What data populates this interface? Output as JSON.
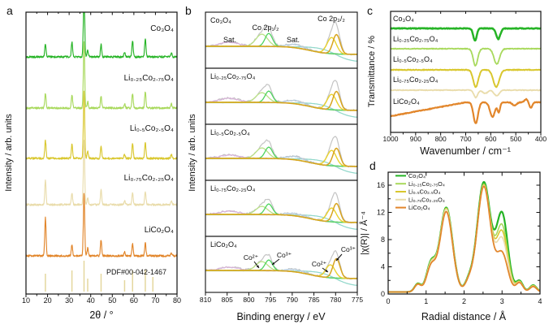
{
  "figure": {
    "panel_labels": [
      "a",
      "b",
      "c",
      "d"
    ],
    "background": "#ffffff"
  },
  "chart_data": [
    {
      "id": "xrd_patterns",
      "type": "line",
      "panel": "a",
      "xlabel": "2θ / °",
      "ylabel": "Intensity / arb. units",
      "xlim": [
        10,
        80
      ],
      "x_ticks": [
        10,
        20,
        30,
        40,
        50,
        60,
        70,
        80
      ],
      "peak_positions_2theta": [
        19.0,
        31.3,
        36.9,
        38.6,
        44.8,
        55.7,
        59.4,
        65.3,
        77.4
      ],
      "series": [
        {
          "name": "Co₃O₄",
          "color": "#26b426",
          "peak_heights": [
            16,
            18,
            85,
            8,
            15,
            6,
            20,
            22,
            5
          ]
        },
        {
          "name": "Li₀.₂₅Co₂.₇₅O₄",
          "color": "#a8d95c",
          "peak_heights": [
            18,
            16,
            82,
            8,
            14,
            5,
            18,
            20,
            5
          ]
        },
        {
          "name": "Li₀.₅Co₂.₅O₄",
          "color": "#d9c72e",
          "peak_heights": [
            22,
            17,
            82,
            9,
            15,
            5,
            18,
            20,
            5
          ]
        },
        {
          "name": "Li₀.₇₅Co₂.₂₅O₄",
          "color": "#e9dcab",
          "peak_heights": [
            30,
            14,
            80,
            9,
            18,
            5,
            15,
            16,
            4
          ]
        },
        {
          "name": "LiCo₂O₄",
          "color": "#e2862b",
          "peak_heights": [
            47,
            14,
            78,
            10,
            20,
            5,
            15,
            16,
            4
          ]
        }
      ],
      "reference": {
        "label": "PDF#00-042-1467",
        "color": "#e4d79e",
        "sticks": [
          [
            19.0,
            22
          ],
          [
            31.3,
            26
          ],
          [
            36.9,
            38
          ],
          [
            38.6,
            16
          ],
          [
            44.8,
            22
          ],
          [
            55.7,
            14
          ],
          [
            59.4,
            26
          ],
          [
            65.3,
            27
          ],
          [
            68.8,
            18
          ]
        ]
      }
    },
    {
      "id": "xps_co2p",
      "type": "line",
      "panel": "b",
      "xlabel": "Binding energy / eV",
      "ylabel": "Intensity / arb. units",
      "xlim": [
        810,
        775
      ],
      "x_ticks": [
        810,
        805,
        800,
        795,
        790,
        785,
        780,
        775
      ],
      "region_labels": [
        "Sat.",
        "Co 2p₁/₂",
        "Sat.",
        "Co 2p₃/₂"
      ],
      "ion_labels": [
        "Co²⁺",
        "Co³⁺",
        "Co²⁺",
        "Co³⁺"
      ],
      "component_colors": {
        "raw": "#c4c4c4",
        "co2_a": "#b9e186",
        "co2_b": "#4fd45f",
        "co3_a": "#e9d22e",
        "co3_b": "#d8a41e",
        "sat_left": "#d9b3d9",
        "sat_right": "#b7cddd",
        "background": "#93d8cb"
      },
      "component_sigmas": {
        "co2_a": 1.35,
        "co2_b": 0.85,
        "co3_a": 1.05,
        "co3_b": 0.82,
        "sat_left": 2.2,
        "sat_right": 2.0
      },
      "subplots": [
        {
          "label": "Co₃O₄",
          "co2_a": [
            797.0,
            15
          ],
          "co2_b": [
            795.4,
            16
          ],
          "co3_a": [
            780.9,
            20
          ],
          "co3_b": [
            779.8,
            24
          ],
          "sat_left": [
            804.5,
            5
          ],
          "sat_right": [
            789.3,
            4
          ]
        },
        {
          "label": "Li₀.₂₅Co₂.₇₅O₄",
          "co2_a": [
            797.0,
            12
          ],
          "co2_b": [
            795.4,
            14
          ],
          "co3_a": [
            780.9,
            19
          ],
          "co3_b": [
            779.8,
            23
          ],
          "sat_left": [
            804.5,
            5
          ],
          "sat_right": [
            789.3,
            4
          ]
        },
        {
          "label": "Li₀.₅Co₂.₅O₄",
          "co2_a": [
            797.0,
            13
          ],
          "co2_b": [
            795.4,
            14
          ],
          "co3_a": [
            780.9,
            19
          ],
          "co3_b": [
            779.8,
            22
          ],
          "sat_left": [
            804.5,
            4
          ],
          "sat_right": [
            789.3,
            4
          ]
        },
        {
          "label": "Li₀.₇₅Co₂.₂₅O₄",
          "co2_a": [
            797.0,
            10
          ],
          "co2_b": [
            795.4,
            13
          ],
          "co3_a": [
            780.9,
            17
          ],
          "co3_b": [
            779.8,
            23
          ],
          "sat_left": [
            804.5,
            4
          ],
          "sat_right": [
            789.3,
            3
          ]
        },
        {
          "label": "LiCo₂O₄",
          "co2_a": [
            797.0,
            11
          ],
          "co2_b": [
            795.4,
            13
          ],
          "co3_a": [
            781.2,
            16
          ],
          "co3_b": [
            779.8,
            24
          ],
          "sat_left": [
            804.5,
            4
          ],
          "sat_right": [
            789.3,
            3
          ]
        }
      ]
    },
    {
      "id": "ftir_spectra",
      "type": "line",
      "panel": "c",
      "xlabel": "Wavenumber / cm⁻¹",
      "ylabel": "Transmittance / %",
      "xlim": [
        1000,
        400
      ],
      "x_ticks": [
        1000,
        900,
        800,
        700,
        600,
        500,
        400
      ],
      "series": [
        {
          "name": "Co₃O₄",
          "color": "#26b426",
          "width": 2.5,
          "dips": [
            [
              663,
              15,
              7
            ],
            [
              570,
              13,
              8
            ]
          ]
        },
        {
          "name": "Li₀.₂₅Co₂.₇₅O₄",
          "color": "#a8d95c",
          "width": 1.8,
          "dips": [
            [
              661,
              21,
              9
            ],
            [
              576,
              19,
              11
            ]
          ]
        },
        {
          "name": "Li₀.₅Co₂.₅O₄",
          "color": "#d9c72e",
          "width": 2.0,
          "dips": [
            [
              660,
              21,
              10
            ],
            [
              578,
              21,
              12
            ]
          ]
        },
        {
          "name": "Li₀.₇₅Co₂.₂₅O₄",
          "color": "#e9dcab",
          "width": 1.8,
          "dips": [
            [
              660,
              9,
              8
            ],
            [
              622,
              4,
              10
            ],
            [
              576,
              7,
              10
            ]
          ]
        },
        {
          "name": "LiCo₂O₄",
          "color": "#e2862b",
          "width": 2.2,
          "dips": [
            [
              660,
              26,
              9
            ],
            [
              593,
              18,
              10
            ],
            [
              568,
              12,
              5
            ],
            [
              505,
              4,
              8
            ],
            [
              458,
              -4,
              7
            ],
            [
              440,
              7,
              6
            ]
          ]
        }
      ]
    },
    {
      "id": "exafs",
      "type": "line",
      "panel": "d",
      "xlabel": "Radial distance / Å",
      "ylabel": "|χ(R)| / Å⁻⁴",
      "xlim": [
        0,
        4
      ],
      "ylim": [
        0,
        17.9
      ],
      "x_ticks": [
        0,
        1,
        2,
        3,
        4
      ],
      "y_ticks": [
        0,
        4,
        8,
        12,
        16
      ],
      "legend_position": "top-left",
      "peak_positions_A": [
        0.78,
        1.13,
        1.53,
        2.12,
        2.52,
        3.0,
        3.46,
        3.82
      ],
      "series": [
        {
          "name": "Co₃O₄",
          "color": "#26b426",
          "width": 2.2,
          "peak_heights": [
            1.2,
            4.1,
            12.4,
            1.4,
            16.1,
            11.4,
            1.6,
            1.0
          ]
        },
        {
          "name": "Li₀.₂₅Co₂.₇₅O₄",
          "color": "#a8d95c",
          "width": 1.6,
          "peak_heights": [
            1.15,
            4.0,
            12.3,
            1.35,
            15.8,
            9.6,
            1.5,
            0.95
          ]
        },
        {
          "name": "Li₀.₅Co₂.₅O₄",
          "color": "#d9c72e",
          "width": 1.6,
          "peak_heights": [
            1.15,
            3.9,
            12.25,
            1.3,
            15.7,
            8.7,
            1.45,
            0.9
          ]
        },
        {
          "name": "Li₀.₇₅Co₂.₂₅O₄",
          "color": "#e9dcab",
          "width": 1.6,
          "peak_heights": [
            1.1,
            3.85,
            12.15,
            1.3,
            15.6,
            7.7,
            1.4,
            0.85
          ]
        },
        {
          "name": "LiCo₂O₄",
          "color": "#e2862b",
          "width": 1.8,
          "peak_heights": [
            1.1,
            3.6,
            11.8,
            1.25,
            15.5,
            5.6,
            1.35,
            0.8
          ]
        }
      ]
    }
  ]
}
